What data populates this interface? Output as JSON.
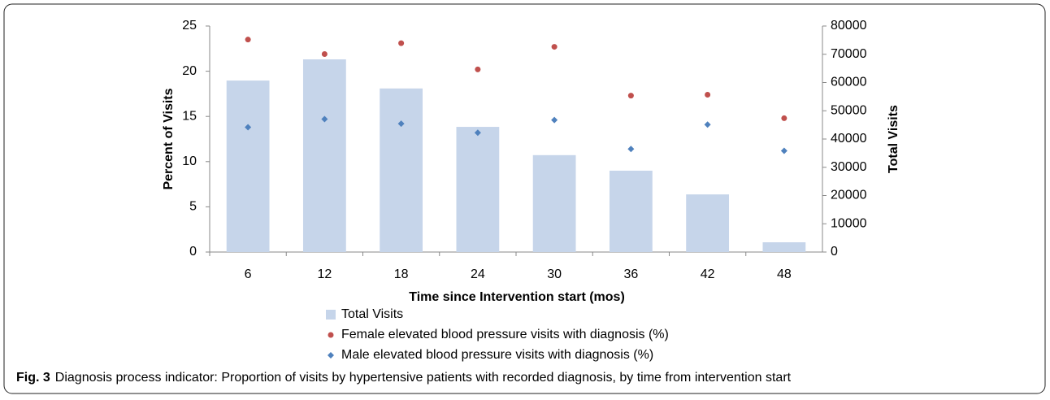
{
  "chart_data": {
    "type": "bar",
    "x_label": "Time since  Intervention start (mos)",
    "y_label": "Percent of Visits",
    "y2_label": "Total Visits",
    "categories": [
      "6",
      "12",
      "18",
      "24",
      "30",
      "36",
      "42",
      "48"
    ],
    "series": [
      {
        "name": "Total Visits",
        "type": "bar",
        "axis": "y2",
        "color": "#c6d5ea",
        "values": [
          60700,
          68200,
          57900,
          44300,
          34300,
          28800,
          20400,
          3450
        ]
      },
      {
        "name": "Female elevated blood pressure visits with diagnosis (%)",
        "type": "scatter",
        "marker": "circle",
        "color": "#c0504d",
        "values": [
          23.5,
          21.9,
          23.1,
          20.2,
          22.7,
          17.3,
          17.4,
          14.8
        ]
      },
      {
        "name": "Male elevated blood pressure visits with diagnosis (%)",
        "type": "scatter",
        "marker": "diamond",
        "color": "#4f81bd",
        "values": [
          13.8,
          14.7,
          14.2,
          13.2,
          14.6,
          11.4,
          14.1,
          11.2
        ]
      }
    ],
    "ylim": [
      0,
      25
    ],
    "yticks": [
      0,
      5,
      10,
      15,
      20,
      25
    ],
    "y2lim": [
      0,
      80000
    ],
    "y2ticks": [
      0,
      10000,
      20000,
      30000,
      40000,
      50000,
      60000,
      70000,
      80000
    ],
    "legend": "bottom",
    "caption_label": "Fig. 3",
    "caption": "Diagnosis process indicator: Proportion of visits by hypertensive patients with recorded diagnosis, by time from intervention start"
  }
}
